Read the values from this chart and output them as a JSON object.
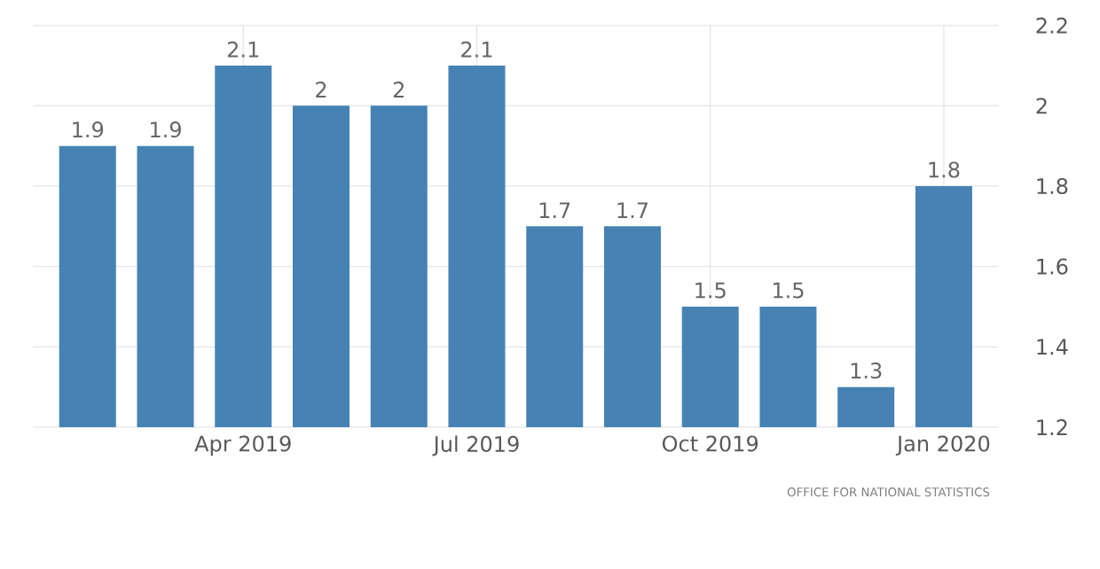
{
  "chart_data": {
    "type": "bar",
    "categories": [
      null,
      null,
      "Apr 2019",
      null,
      null,
      "Jul 2019",
      null,
      null,
      "Oct 2019",
      null,
      null,
      "Jan 2020"
    ],
    "values": [
      1.9,
      1.9,
      2.1,
      2,
      2,
      2.1,
      1.7,
      1.7,
      1.5,
      1.5,
      1.3,
      1.8
    ],
    "color": "#4682b4",
    "ylim": [
      1.2,
      2.2
    ],
    "yticks": [
      1.2,
      1.4,
      1.6,
      1.8,
      2,
      2.2
    ],
    "grid": true,
    "data_labels": true,
    "annotations": [
      "OFFICE FOR NATIONAL STATISTICS"
    ]
  }
}
